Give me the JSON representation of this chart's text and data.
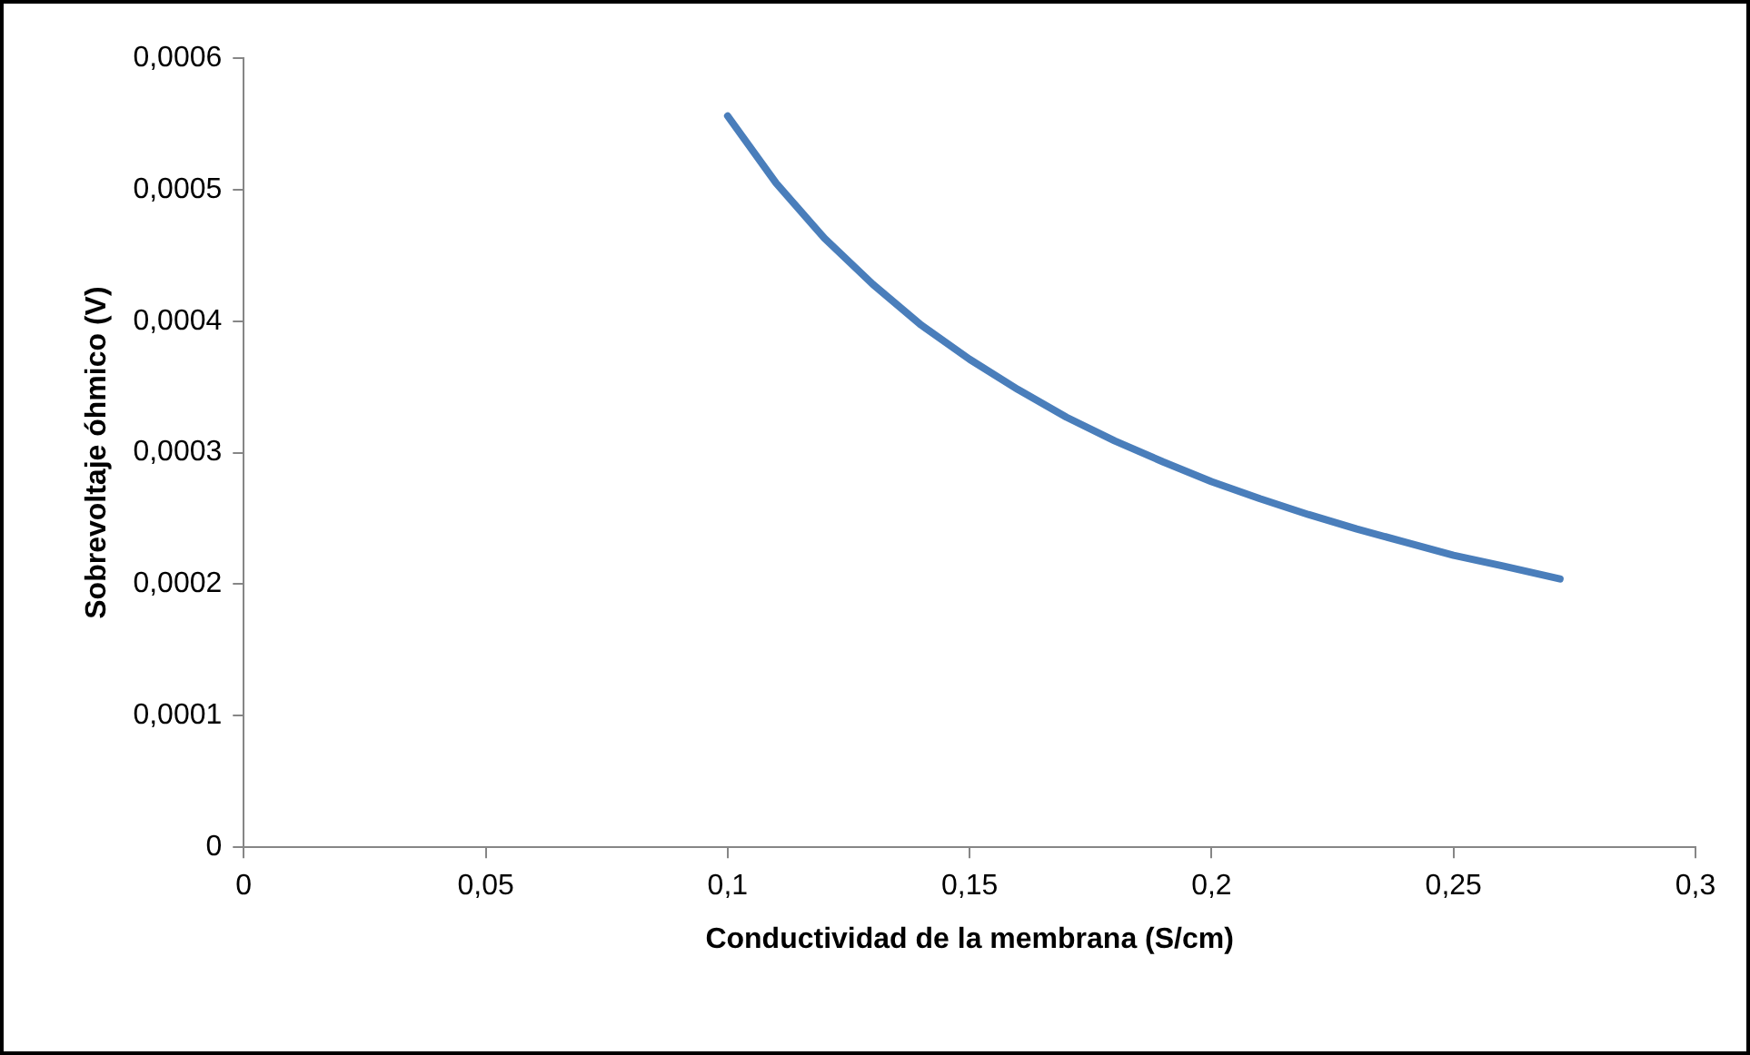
{
  "chart_data": {
    "type": "line",
    "xlabel": "Conductividad de la membrana (S/cm)",
    "ylabel": "Sobrevoltaje óhmico (V)",
    "series": [
      {
        "color": "#4a7ebb",
        "x": [
          0.1,
          0.11,
          0.12,
          0.13,
          0.14,
          0.15,
          0.16,
          0.17,
          0.18,
          0.19,
          0.2,
          0.21,
          0.22,
          0.23,
          0.24,
          0.25,
          0.26,
          0.272
        ],
        "values": [
          0.000556,
          0.000505,
          0.000463,
          0.000428,
          0.000397,
          0.000371,
          0.000348,
          0.000327,
          0.000309,
          0.000293,
          0.000278,
          0.000265,
          0.000253,
          0.000242,
          0.000232,
          0.000222,
          0.000214,
          0.000204
        ]
      }
    ],
    "xlim": [
      0,
      0.3
    ],
    "xticks": [
      0,
      {
        "value": 0.05,
        "label": "0,05"
      },
      {
        "value": 0.1,
        "label": "0,1"
      },
      {
        "value": 0.15,
        "label": "0,15"
      },
      {
        "value": 0.2,
        "label": "0,2"
      },
      {
        "value": 0.25,
        "label": "0,25"
      },
      {
        "value": 0.3,
        "label": "0,3"
      }
    ],
    "ylim": [
      0,
      0.0006
    ],
    "yticks": [
      0,
      {
        "value": 0.0001,
        "label": "0,0001"
      },
      {
        "value": 0.0002,
        "label": "0,0002"
      },
      {
        "value": 0.0003,
        "label": "0,0003"
      },
      {
        "value": 0.0004,
        "label": "0,0004"
      },
      {
        "value": 0.0005,
        "label": "0,0005"
      },
      {
        "value": 0.0006,
        "label": "0,0006"
      }
    ],
    "grid": false,
    "legend": false,
    "marker": "none",
    "line_style": "solid"
  }
}
